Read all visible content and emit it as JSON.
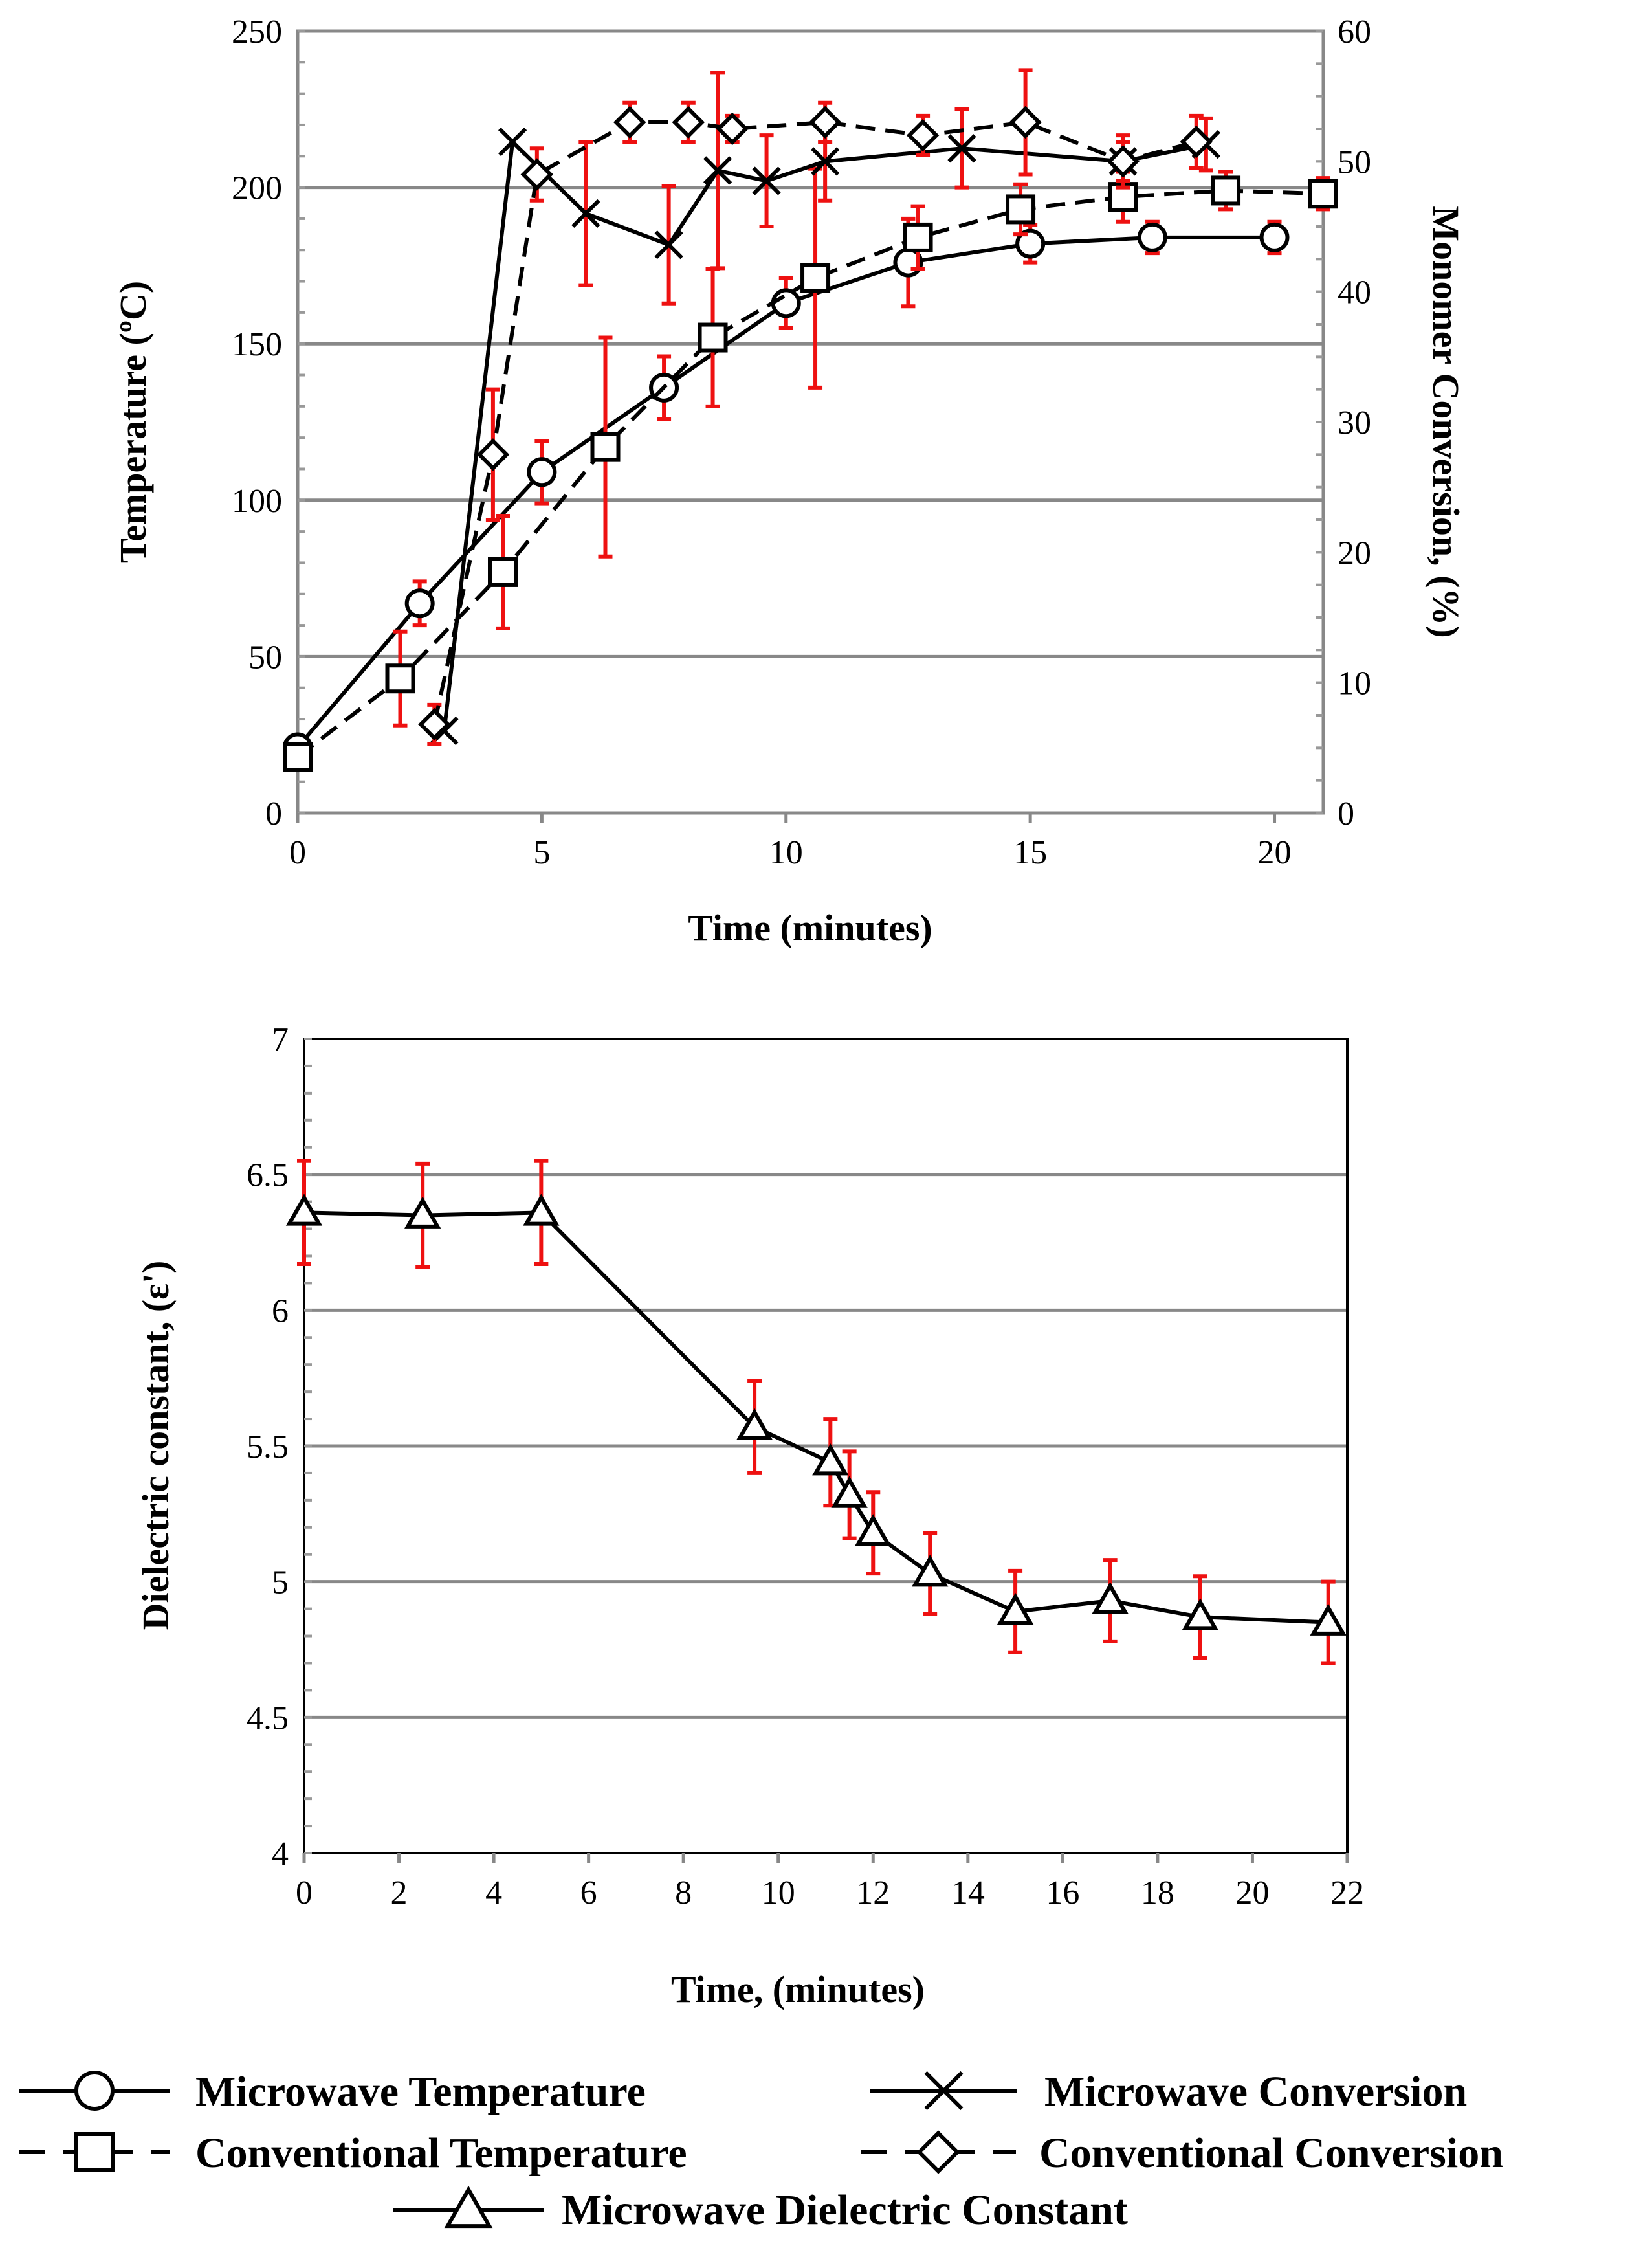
{
  "colors": {
    "line": "#000000",
    "error_bar": "#ee1111",
    "gridline": "#888888",
    "background": "#ffffff"
  },
  "chart_data": [
    {
      "type": "line",
      "name": "top",
      "xlabel": "Time (minutes)",
      "ylabel": "Temperature (ºC)",
      "y2label": "Monomer Conversion, (%)",
      "xlim": [
        0,
        21
      ],
      "ylim": [
        0,
        250
      ],
      "y2lim": [
        0,
        60
      ],
      "x_ticks": [
        0,
        5,
        10,
        15,
        20
      ],
      "x_tick_labels": [
        "0",
        "5",
        "10",
        "15",
        "20"
      ],
      "y_ticks": [
        0,
        50,
        100,
        150,
        200,
        250
      ],
      "y_tick_labels": [
        "0",
        "50",
        "100",
        "150",
        "200",
        "250"
      ],
      "y2_ticks": [
        0,
        10,
        20,
        30,
        40,
        50,
        60
      ],
      "y2_tick_labels": [
        "0",
        "10",
        "20",
        "30",
        "40",
        "50",
        "60"
      ],
      "grid": true,
      "series": [
        {
          "name": "Microwave Temperature",
          "axis": "left",
          "marker": "circle",
          "dash": "solid",
          "x": [
            0,
            2.5,
            5,
            7.5,
            10,
            12.5,
            15,
            17.5,
            20
          ],
          "y": [
            21,
            67,
            109,
            136,
            163,
            176,
            182,
            184,
            184
          ],
          "err": [
            null,
            7,
            10,
            10,
            8,
            14,
            6,
            5,
            5
          ]
        },
        {
          "name": "Conventional Temperature",
          "axis": "left",
          "marker": "square",
          "dash": "dashed",
          "x": [
            0,
            2.1,
            4.2,
            6.3,
            8.5,
            10.6,
            12.7,
            14.8,
            16.9,
            19,
            21
          ],
          "y": [
            18,
            43,
            77,
            117,
            152,
            171,
            184,
            193,
            197,
            199,
            198
          ],
          "err": [
            null,
            15,
            18,
            35,
            22,
            35,
            10,
            8,
            8,
            6,
            5
          ]
        },
        {
          "name": "Microwave Conversion",
          "axis": "right",
          "marker": "x",
          "dash": "solid",
          "x": [
            3,
            4.4,
            5.9,
            7.6,
            8.6,
            9.6,
            10.8,
            13.6,
            16.9,
            18.6
          ],
          "y": [
            6.3,
            51.5,
            46,
            43.6,
            49.3,
            48.5,
            50,
            51,
            50,
            51.3
          ],
          "err": [
            null,
            null,
            5.5,
            4.5,
            7.5,
            3.5,
            3,
            3,
            2,
            2
          ]
        },
        {
          "name": "Conventional Conversion",
          "axis": "right",
          "marker": "diamond",
          "dash": "dashed",
          "x": [
            2.8,
            4,
            4.9,
            6.8,
            8,
            8.9,
            10.8,
            12.8,
            14.9,
            16.9,
            18.4
          ],
          "y": [
            6.8,
            27.5,
            49,
            53,
            53,
            52.5,
            53,
            52,
            53,
            50,
            51.5
          ],
          "err": [
            1.5,
            5,
            2,
            1.5,
            1.5,
            1,
            1.5,
            1.5,
            4,
            1.5,
            2
          ]
        }
      ]
    },
    {
      "type": "line",
      "name": "bottom",
      "xlabel": "Time, (minutes)",
      "ylabel": "Dielectric constant, (ε')",
      "xlim": [
        0,
        22
      ],
      "ylim": [
        4,
        7
      ],
      "x_ticks": [
        0,
        2,
        4,
        6,
        8,
        10,
        12,
        14,
        16,
        18,
        20,
        22
      ],
      "x_tick_labels": [
        "0",
        "2",
        "4",
        "6",
        "8",
        "10",
        "12",
        "14",
        "16",
        "18",
        "20",
        "22"
      ],
      "y_ticks": [
        4,
        4.5,
        5,
        5.5,
        6,
        6.5,
        7
      ],
      "y_tick_labels": [
        "4",
        "4.5",
        "5",
        "5.5",
        "6",
        "6.5",
        "7"
      ],
      "grid": true,
      "series": [
        {
          "name": "Microwave Dielectric Constant",
          "axis": "left",
          "marker": "triangle",
          "dash": "solid",
          "x": [
            0,
            2.5,
            5,
            9.5,
            11.1,
            11.5,
            12,
            13.2,
            15,
            17,
            18.9,
            21.6
          ],
          "y": [
            6.36,
            6.35,
            6.36,
            5.57,
            5.44,
            5.32,
            5.18,
            5.03,
            4.89,
            4.93,
            4.87,
            4.85
          ],
          "err": [
            0.19,
            0.19,
            0.19,
            0.17,
            0.16,
            0.16,
            0.15,
            0.15,
            0.15,
            0.15,
            0.15,
            0.15
          ]
        }
      ]
    }
  ],
  "legend": {
    "items": [
      {
        "label": "Microwave Temperature",
        "marker": "circle",
        "dash": "solid"
      },
      {
        "label": "Microwave Conversion",
        "marker": "x",
        "dash": "solid"
      },
      {
        "label": "Conventional Temperature",
        "marker": "square",
        "dash": "dashed"
      },
      {
        "label": "Conventional Conversion",
        "marker": "diamond",
        "dash": "dashed"
      },
      {
        "label": "Microwave Dielectric Constant",
        "marker": "triangle",
        "dash": "solid"
      }
    ]
  }
}
